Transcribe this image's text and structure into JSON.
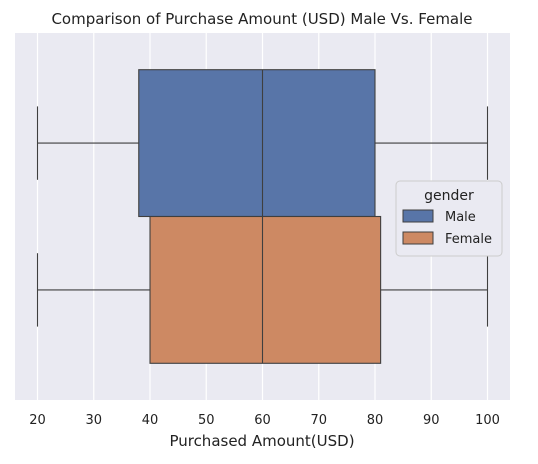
{
  "chart_data": {
    "type": "boxplot",
    "orientation": "horizontal",
    "title": "Comparison of Purchase Amount (USD) Male Vs. Female",
    "xlabel": "Purchased Amount(USD)",
    "ylabel": "",
    "xlim": [
      16,
      104
    ],
    "xticks": [
      20,
      30,
      40,
      50,
      60,
      70,
      80,
      90,
      100
    ],
    "grid": true,
    "legend": {
      "title": "gender",
      "placement": "center-right"
    },
    "series": [
      {
        "name": "Male",
        "color": "#5875a8",
        "min": 20,
        "q1": 38,
        "median": 60,
        "q3": 80,
        "max": 100
      },
      {
        "name": "Female",
        "color": "#cd8963",
        "min": 20,
        "q1": 40,
        "median": 60,
        "q3": 81,
        "max": 100
      }
    ]
  }
}
